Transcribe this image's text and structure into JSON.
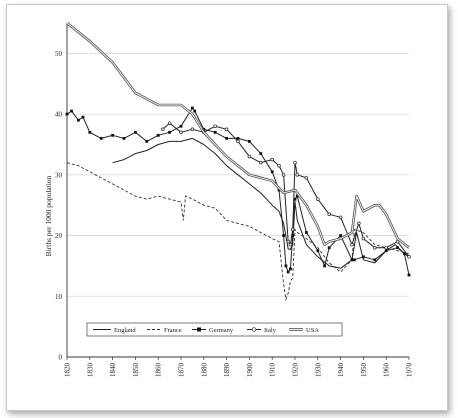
{
  "chart_data": {
    "type": "line",
    "title": "",
    "xlabel": "",
    "ylabel": "Births per 1000 population",
    "xlim": [
      1820,
      1970
    ],
    "ylim": [
      0,
      55
    ],
    "x_ticks": [
      "1820",
      "1830",
      "1840",
      "1850",
      "1860",
      "1870",
      "1880",
      "1890",
      "1900",
      "1910",
      "1920",
      "1930",
      "1940",
      "1950",
      "1960",
      "1970"
    ],
    "y_ticks": [
      "0",
      "10",
      "20",
      "30",
      "40",
      "50"
    ],
    "grid": "horizontal",
    "legend_position": "bottom",
    "series": [
      {
        "name": "England",
        "style": "solid",
        "x": [
          1840,
          1845,
          1850,
          1855,
          1860,
          1865,
          1870,
          1875,
          1880,
          1885,
          1890,
          1895,
          1900,
          1905,
          1910,
          1913,
          1915,
          1917,
          1918,
          1919,
          1920,
          1921,
          1925,
          1930,
          1935,
          1940,
          1945,
          1947,
          1950,
          1955,
          1960,
          1964,
          1968,
          1970
        ],
        "y": [
          32,
          32.5,
          33.5,
          34,
          35,
          35.5,
          35.5,
          36,
          35,
          33.5,
          31.5,
          30,
          28.5,
          27,
          25,
          24,
          22,
          17.8,
          17.7,
          18.5,
          25.5,
          22.5,
          18.5,
          16.5,
          15,
          14.6,
          16,
          20.5,
          16,
          15.5,
          17.5,
          18.5,
          17,
          16.5
        ]
      },
      {
        "name": "France",
        "style": "dashed",
        "x": [
          1820,
          1825,
          1830,
          1835,
          1840,
          1845,
          1850,
          1855,
          1860,
          1865,
          1870,
          1871,
          1872,
          1875,
          1880,
          1885,
          1890,
          1895,
          1900,
          1905,
          1910,
          1913,
          1915,
          1916,
          1917,
          1918,
          1919,
          1920,
          1921,
          1925,
          1930,
          1935,
          1940,
          1945,
          1946,
          1950,
          1955,
          1960,
          1965,
          1970
        ],
        "y": [
          32,
          31.5,
          30.5,
          29.5,
          28.5,
          27.5,
          26.5,
          26,
          26.5,
          26,
          25.5,
          22.5,
          26.5,
          26,
          25,
          24.5,
          22.5,
          22,
          21.5,
          20.5,
          19.5,
          19,
          12,
          9.5,
          10.5,
          12.5,
          13,
          21,
          20.5,
          19.5,
          18,
          15.5,
          14,
          16,
          21,
          20.5,
          18.5,
          18,
          17.5,
          17
        ]
      },
      {
        "name": "Germany",
        "style": "square-markers",
        "x": [
          1820,
          1822,
          1825,
          1827,
          1830,
          1835,
          1840,
          1845,
          1850,
          1855,
          1860,
          1865,
          1870,
          1875,
          1876,
          1880,
          1885,
          1890,
          1895,
          1900,
          1905,
          1910,
          1913,
          1915,
          1916,
          1917,
          1918,
          1919,
          1920,
          1921,
          1925,
          1930,
          1933,
          1935,
          1940,
          1945,
          1946,
          1950,
          1955,
          1960,
          1965,
          1968,
          1970
        ],
        "y": [
          40,
          40.5,
          39,
          39.5,
          37,
          36,
          36.5,
          36,
          37,
          35.5,
          36.5,
          37,
          38,
          41,
          40.5,
          37.5,
          37,
          36,
          36,
          35.5,
          33.5,
          30.5,
          27.5,
          20,
          15,
          14,
          14.5,
          20,
          26,
          26.5,
          20.5,
          17.5,
          15,
          18,
          20,
          16,
          16,
          16.5,
          16,
          17.5,
          18,
          17,
          13.5
        ]
      },
      {
        "name": "Italy",
        "style": "circle-markers",
        "x": [
          1862,
          1865,
          1870,
          1875,
          1880,
          1885,
          1890,
          1895,
          1900,
          1905,
          1910,
          1913,
          1915,
          1917,
          1918,
          1919,
          1920,
          1921,
          1925,
          1930,
          1935,
          1940,
          1945,
          1948,
          1950,
          1955,
          1960,
          1965,
          1970
        ],
        "y": [
          37.5,
          38.5,
          37,
          37.5,
          37,
          38,
          37.5,
          35.5,
          33,
          32,
          32.5,
          31.5,
          30,
          19,
          18.5,
          21,
          32,
          30,
          29.5,
          26,
          23.5,
          23,
          18.5,
          22,
          19.5,
          18,
          18,
          19,
          16.5
        ]
      },
      {
        "name": "USA",
        "style": "double-line",
        "x": [
          1820,
          1830,
          1840,
          1850,
          1860,
          1870,
          1875,
          1880,
          1890,
          1900,
          1910,
          1915,
          1920,
          1925,
          1930,
          1933,
          1935,
          1940,
          1945,
          1947,
          1950,
          1955,
          1957,
          1960,
          1965,
          1970
        ],
        "y": [
          55,
          52,
          48.5,
          43.5,
          41.5,
          41.5,
          40,
          37,
          33,
          30,
          29,
          27,
          27.5,
          25,
          21.5,
          18.5,
          19,
          19.5,
          20.5,
          26.5,
          24,
          25,
          25,
          23.5,
          19.5,
          18
        ]
      }
    ]
  }
}
